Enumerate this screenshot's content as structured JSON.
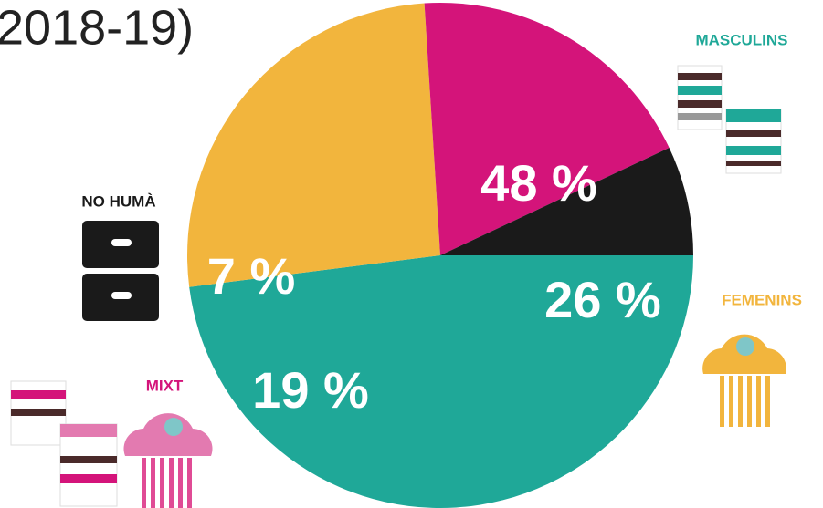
{
  "chart_data": {
    "type": "pie",
    "title": "2018-19)",
    "categories": [
      "MASCULINS",
      "FEMENINS",
      "MIXT",
      "NO HUMÀ"
    ],
    "values": [
      48,
      26,
      19,
      7
    ],
    "value_labels": [
      "48 %",
      "26 %",
      "19 %",
      "7 %"
    ],
    "colors": [
      "#1fa898",
      "#f2b53d",
      "#d4147a",
      "#1a1a1a"
    ]
  }
}
